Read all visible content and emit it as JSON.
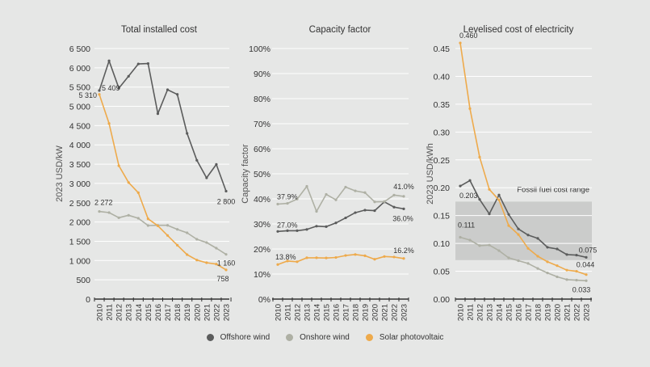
{
  "colors": {
    "offshore": "#5b5c5c",
    "onshore": "#aeb0a4",
    "solar": "#eeaa4b",
    "grid": "#ffffff",
    "band": "#cbcccb",
    "axis": "#333333"
  },
  "legend": [
    {
      "key": "offshore",
      "label": "Offshore wind"
    },
    {
      "key": "onshore",
      "label": "Onshore wind"
    },
    {
      "key": "solar",
      "label": "Solar photovoltaic"
    }
  ],
  "chart_data": [
    {
      "type": "line",
      "title": "Total installed cost",
      "xlabel": "",
      "ylabel": "2023 USD/kW",
      "categories": [
        "2010",
        "2011",
        "2012",
        "2013",
        "2014",
        "2015",
        "2016",
        "2017",
        "2018",
        "2019",
        "2020",
        "2021",
        "2022",
        "2023"
      ],
      "ylim": [
        0,
        6500
      ],
      "yticks": [
        0,
        500,
        1000,
        1500,
        2000,
        2500,
        3000,
        3500,
        4000,
        4500,
        5000,
        5500,
        6000,
        6500
      ],
      "ytick_labels": [
        "0",
        "500",
        "1 000",
        "1 500",
        "2 000",
        "2 500",
        "3 000",
        "3 500",
        "4 000",
        "4 500",
        "5 000",
        "5 500",
        "6 000",
        "6 500"
      ],
      "grid": true,
      "series": [
        {
          "name": "Offshore wind",
          "key": "offshore",
          "values": [
            5409,
            6180,
            5470,
            5780,
            6100,
            6110,
            4810,
            5430,
            5310,
            4298,
            3600,
            3145,
            3494,
            2800
          ]
        },
        {
          "name": "Onshore wind",
          "key": "onshore",
          "values": [
            2272,
            2243,
            2111,
            2174,
            2096,
            1908,
            1914,
            1914,
            1809,
            1719,
            1551,
            1468,
            1321,
            1160
          ]
        },
        {
          "name": "Solar photovoltaic",
          "key": "solar",
          "values": [
            5310,
            4555,
            3459,
            3025,
            2760,
            2082,
            1901,
            1650,
            1398,
            1153,
            1013,
            943,
            908,
            758
          ]
        }
      ],
      "annotations": [
        {
          "series": "offshore",
          "index": 0,
          "text": "5 409"
        },
        {
          "series": "offshore",
          "index": 13,
          "text": "2 800"
        },
        {
          "series": "onshore",
          "index": 0,
          "text": "2 272"
        },
        {
          "series": "onshore",
          "index": 13,
          "text": "1 160"
        },
        {
          "series": "solar",
          "index": 0,
          "text": "5 310"
        },
        {
          "series": "solar",
          "index": 13,
          "text": "758"
        }
      ]
    },
    {
      "type": "line",
      "title": "Capacity factor",
      "xlabel": "",
      "ylabel": "Capacity factor",
      "categories": [
        "2010",
        "2011",
        "2012",
        "2013",
        "2014",
        "2015",
        "2016",
        "2017",
        "2018",
        "2019",
        "2020",
        "2021",
        "2022",
        "2023"
      ],
      "ylim": [
        0,
        100
      ],
      "yticks": [
        0,
        10,
        20,
        30,
        40,
        50,
        60,
        70,
        80,
        90,
        100
      ],
      "ytick_labels": [
        "0%",
        "10%",
        "20%",
        "30%",
        "40%",
        "50%",
        "60%",
        "70%",
        "80%",
        "90%",
        "100%"
      ],
      "grid": true,
      "series": [
        {
          "name": "Offshore wind",
          "key": "offshore",
          "values": [
            27.0,
            27.3,
            27.3,
            27.8,
            29.1,
            28.9,
            30.4,
            32.4,
            34.5,
            35.5,
            35.3,
            38.8,
            36.7,
            36.0
          ]
        },
        {
          "name": "Onshore wind",
          "key": "onshore",
          "values": [
            37.9,
            38.2,
            39.9,
            45.0,
            35.0,
            41.8,
            39.6,
            44.7,
            43.2,
            42.5,
            38.8,
            38.9,
            41.5,
            41.0
          ]
        },
        {
          "name": "Solar photovoltaic",
          "key": "solar",
          "values": [
            13.8,
            15.2,
            14.9,
            16.5,
            16.5,
            16.4,
            16.6,
            17.4,
            17.8,
            17.3,
            15.9,
            17.0,
            16.8,
            16.2
          ]
        }
      ],
      "annotations": [
        {
          "series": "offshore",
          "index": 0,
          "text": "27.0%"
        },
        {
          "series": "offshore",
          "index": 13,
          "text": "36.0%"
        },
        {
          "series": "onshore",
          "index": 0,
          "text": "37.9%"
        },
        {
          "series": "onshore",
          "index": 13,
          "text": "41.0%"
        },
        {
          "series": "solar",
          "index": 0,
          "text": "13.8%"
        },
        {
          "series": "solar",
          "index": 13,
          "text": "16.2%"
        }
      ]
    },
    {
      "type": "line",
      "title": "Levelised cost of electricity",
      "xlabel": "",
      "ylabel": "2023 USD/kWh",
      "categories": [
        "2010",
        "2011",
        "2012",
        "2013",
        "2014",
        "2015",
        "2016",
        "2017",
        "2018",
        "2019",
        "2020",
        "2021",
        "2022",
        "2023"
      ],
      "ylim": [
        0,
        0.45
      ],
      "yticks": [
        0,
        0.05,
        0.1,
        0.15,
        0.2,
        0.25,
        0.3,
        0.35,
        0.4,
        0.45
      ],
      "ytick_labels": [
        "0.00",
        "0.05",
        "0.10",
        "0.15",
        "0.20",
        "0.25",
        "0.30",
        "0.35",
        "0.40",
        "0.45"
      ],
      "grid": true,
      "band": {
        "label": "Fossil fuel cost range",
        "low": 0.07,
        "high": 0.175
      },
      "series": [
        {
          "name": "Offshore wind",
          "key": "offshore",
          "values": [
            0.203,
            0.213,
            0.179,
            0.153,
            0.187,
            0.152,
            0.126,
            0.115,
            0.109,
            0.093,
            0.09,
            0.08,
            0.079,
            0.075
          ]
        },
        {
          "name": "Onshore wind",
          "key": "onshore",
          "values": [
            0.111,
            0.106,
            0.096,
            0.097,
            0.087,
            0.074,
            0.069,
            0.064,
            0.055,
            0.047,
            0.04,
            0.035,
            0.034,
            0.033
          ]
        },
        {
          "name": "Solar photovoltaic",
          "key": "solar",
          "values": [
            0.46,
            0.342,
            0.255,
            0.197,
            0.178,
            0.132,
            0.116,
            0.091,
            0.077,
            0.067,
            0.06,
            0.052,
            0.05,
            0.044
          ]
        }
      ],
      "annotations": [
        {
          "series": "offshore",
          "index": 0,
          "text": "0.203"
        },
        {
          "series": "offshore",
          "index": 13,
          "text": "0.075"
        },
        {
          "series": "onshore",
          "index": 0,
          "text": "0.111"
        },
        {
          "series": "onshore",
          "index": 13,
          "text": "0.033"
        },
        {
          "series": "solar",
          "index": 0,
          "text": "0.460"
        },
        {
          "series": "solar",
          "index": 13,
          "text": "0.044"
        }
      ]
    }
  ]
}
